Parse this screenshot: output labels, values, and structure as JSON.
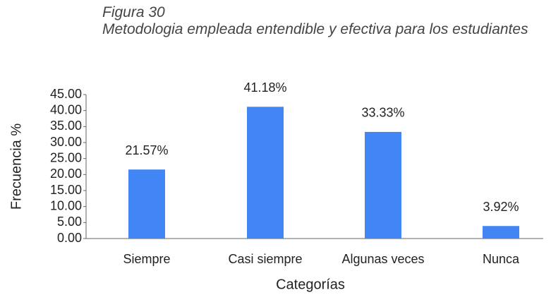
{
  "chart_data": {
    "type": "bar",
    "figure_label": "Figura 30",
    "title": "Metodologia empleada entendible y efectiva para los estudiantes",
    "categories": [
      "Siempre",
      "Casi siempre",
      "Algunas veces",
      "Nunca"
    ],
    "values": [
      21.57,
      41.18,
      33.33,
      3.92
    ],
    "value_labels": [
      "21.57%",
      "41.18%",
      "33.33%",
      "3.92%"
    ],
    "color": "#4285f4",
    "ylim": [
      0,
      45
    ],
    "yticks": [
      {
        "value": 0,
        "label": "0.00"
      },
      {
        "value": 5,
        "label": "5.00"
      },
      {
        "value": 10,
        "label": "10.00"
      },
      {
        "value": 15,
        "label": "15.00"
      },
      {
        "value": 20,
        "label": "20.00"
      },
      {
        "value": 25,
        "label": "25.00"
      },
      {
        "value": 30,
        "label": "30.00"
      },
      {
        "value": 35,
        "label": "35.00"
      },
      {
        "value": 40,
        "label": "40.00"
      },
      {
        "value": 45,
        "label": "45.00"
      }
    ],
    "y_label": "Frecuencia %",
    "x_label": "Categorías"
  }
}
